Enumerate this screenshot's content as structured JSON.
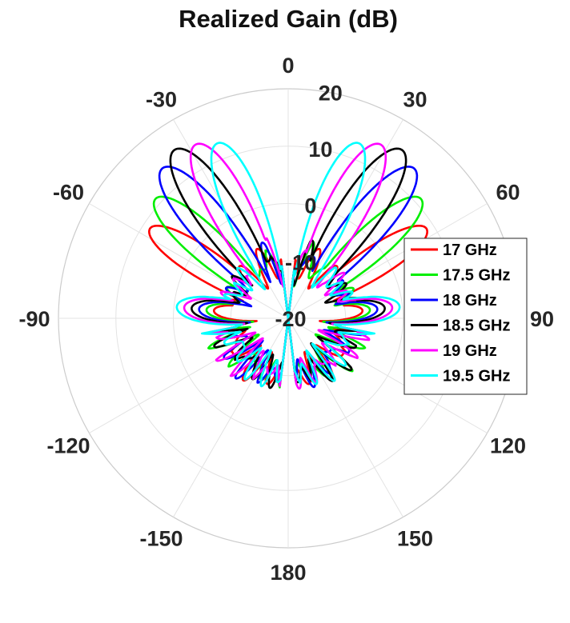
{
  "chart_data": {
    "type": "line",
    "subtype": "polar",
    "title": "Realized Gain (dB)",
    "angle_unit": "degrees",
    "angle_zero": "top",
    "angle_direction": "clockwise",
    "angle_ticks": [
      0,
      30,
      60,
      90,
      120,
      150,
      180,
      -150,
      -120,
      -90,
      -60,
      -30
    ],
    "radial_ticks": [
      -20,
      -10,
      0,
      10,
      20
    ],
    "rlim": [
      -20,
      20
    ],
    "grid": true,
    "legend": {
      "placement": "right"
    },
    "colors": {
      "17 GHz": "#ff0000",
      "17.5 GHz": "#00ee00",
      "18 GHz": "#0000ff",
      "18.5 GHz": "#000000",
      "19 GHz": "#ff00ff",
      "19.5 GHz": "#00ffff"
    },
    "series": [
      {
        "name": "17 GHz",
        "main_lobe_deg": 57,
        "peak_gain": 8.7,
        "min_gain": -20,
        "sidelobe_level": -8.5
      },
      {
        "name": "17.5 GHz",
        "main_lobe_deg": 48,
        "peak_gain": 11.1,
        "min_gain": -20,
        "sidelobe_level": -8.5
      },
      {
        "name": "18 GHz",
        "main_lobe_deg": 40,
        "peak_gain": 14.1,
        "min_gain": -20,
        "sidelobe_level": -8.5
      },
      {
        "name": "18.5 GHz",
        "main_lobe_deg": 34,
        "peak_gain": 15.4,
        "min_gain": -20,
        "sidelobe_level": -8.5
      },
      {
        "name": "19 GHz",
        "main_lobe_deg": 28,
        "peak_gain": 14.3,
        "min_gain": -20,
        "sidelobe_level": -8.5
      },
      {
        "name": "19.5 GHz",
        "main_lobe_deg": 22,
        "peak_gain": 12.9,
        "min_gain": -20,
        "sidelobe_level": -8.5
      }
    ]
  }
}
